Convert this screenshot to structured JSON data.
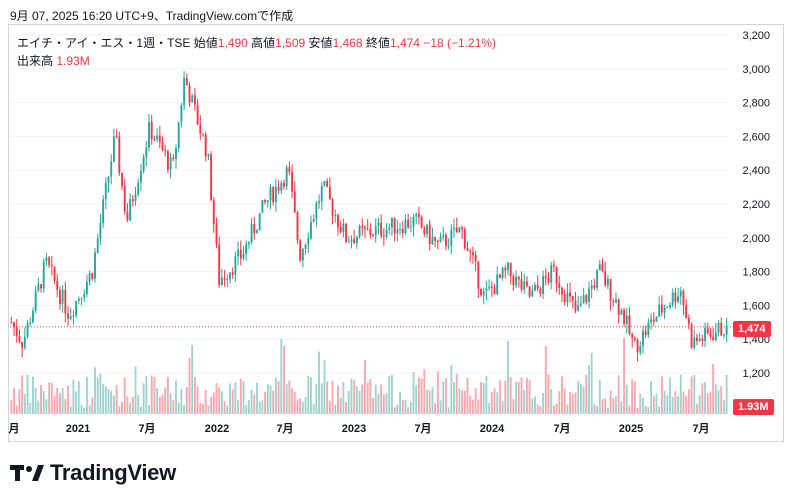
{
  "header": {
    "timestamp": "9月 07, 2025 16:20 UTC+9、TradingView.comで作成"
  },
  "legend": {
    "symbol": "エイチ・アイ・エス・1週・TSE",
    "open_label": "始値",
    "open": "1,490",
    "high_label": "高値",
    "high": "1,509",
    "low_label": "安値",
    "low": "1,468",
    "close_label": "終値",
    "close": "1,474",
    "change": "−18 (−1.21%)",
    "volume_label": "出来高",
    "volume": "1.93M"
  },
  "price_tag": "1,474",
  "volume_tag": "1.93M",
  "brand": {
    "name": "TradingView"
  },
  "colors": {
    "up": "#26a69a",
    "down": "#f23645",
    "up_volume": "#9fd4ce",
    "down_volume": "#f6a9b0",
    "text": "#131722",
    "grid": "#f0f3fa"
  },
  "chart_data": {
    "type": "candlestick",
    "interval": "1週",
    "exchange": "TSE",
    "y_ticks": [
      "3,200",
      "3,000",
      "2,800",
      "2,600",
      "2,400",
      "2,200",
      "2,000",
      "1,800",
      "1,600",
      "1,400",
      "1,200"
    ],
    "x_ticks": [
      "月",
      "2021",
      "7月",
      "2022",
      "7月",
      "2023",
      "7月",
      "2024",
      "7月",
      "2025",
      "7月"
    ],
    "ylim": [
      1000,
      3200
    ],
    "last_price": 1474,
    "approx_path": [
      {
        "date": "2020-07",
        "close": 1500
      },
      {
        "date": "2020-08",
        "close": 1380
      },
      {
        "date": "2020-10",
        "close": 1850
      },
      {
        "date": "2020-12",
        "close": 1550
      },
      {
        "date": "2021-02",
        "close": 1800
      },
      {
        "date": "2021-04",
        "close": 2600
      },
      {
        "date": "2021-05",
        "close": 2100
      },
      {
        "date": "2021-07",
        "close": 2650
      },
      {
        "date": "2021-09",
        "close": 2400
      },
      {
        "date": "2021-10",
        "close": 2950
      },
      {
        "date": "2021-12",
        "close": 2500
      },
      {
        "date": "2022-01",
        "close": 1750
      },
      {
        "date": "2022-03",
        "close": 1900
      },
      {
        "date": "2022-05",
        "close": 2200
      },
      {
        "date": "2022-07",
        "close": 2400
      },
      {
        "date": "2022-08",
        "close": 1900
      },
      {
        "date": "2022-10",
        "close": 2300
      },
      {
        "date": "2022-12",
        "close": 2000
      },
      {
        "date": "2023-03",
        "close": 2050
      },
      {
        "date": "2023-06",
        "close": 2100
      },
      {
        "date": "2023-08",
        "close": 1950
      },
      {
        "date": "2023-10",
        "close": 2050
      },
      {
        "date": "2023-12",
        "close": 1650
      },
      {
        "date": "2024-02",
        "close": 1800
      },
      {
        "date": "2024-04",
        "close": 1650
      },
      {
        "date": "2024-06",
        "close": 1800
      },
      {
        "date": "2024-08",
        "close": 1550
      },
      {
        "date": "2024-10",
        "close": 1800
      },
      {
        "date": "2024-12",
        "close": 1550
      },
      {
        "date": "2025-01",
        "close": 1350
      },
      {
        "date": "2025-03",
        "close": 1550
      },
      {
        "date": "2025-05",
        "close": 1700
      },
      {
        "date": "2025-06",
        "close": 1380
      },
      {
        "date": "2025-09",
        "close": 1474
      }
    ]
  }
}
